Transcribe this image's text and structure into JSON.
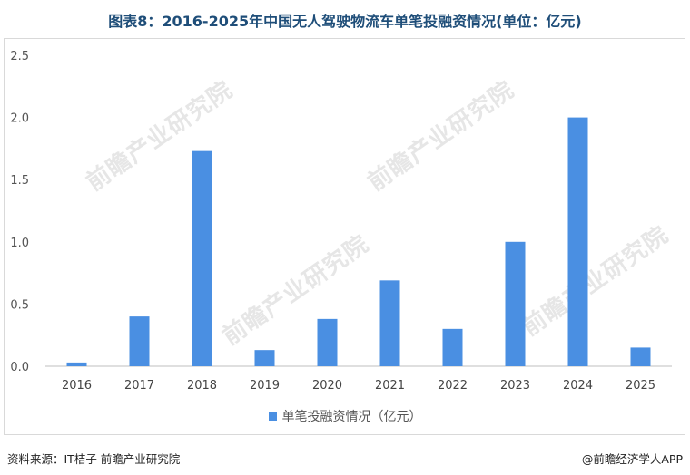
{
  "title": "图表8：2016-2025年中国无人驾驶物流车单笔投融资情况(单位：亿元)",
  "legend_label": "单笔投融资情况（亿元）",
  "source": "资料来源：IT桔子 前瞻产业研究院",
  "brand": "@前瞻经济学人APP",
  "watermark": "前瞻产业研究院",
  "colors": {
    "bar": "#4a8fe2",
    "title": "#1f4e79"
  },
  "chart_data": {
    "type": "bar",
    "categories": [
      "2016",
      "2017",
      "2018",
      "2019",
      "2020",
      "2021",
      "2022",
      "2023",
      "2024",
      "2025"
    ],
    "series": [
      {
        "name": "单笔投融资情况（亿元）",
        "values": [
          0.03,
          0.4,
          1.73,
          0.13,
          0.38,
          0.69,
          0.3,
          1.0,
          2.0,
          0.15
        ]
      }
    ],
    "ylim": [
      0,
      2.5
    ],
    "yticks": [
      "0.0",
      "0.5",
      "1.0",
      "1.5",
      "2.0",
      "2.5"
    ],
    "grid": false,
    "legend_position": "bottom"
  }
}
